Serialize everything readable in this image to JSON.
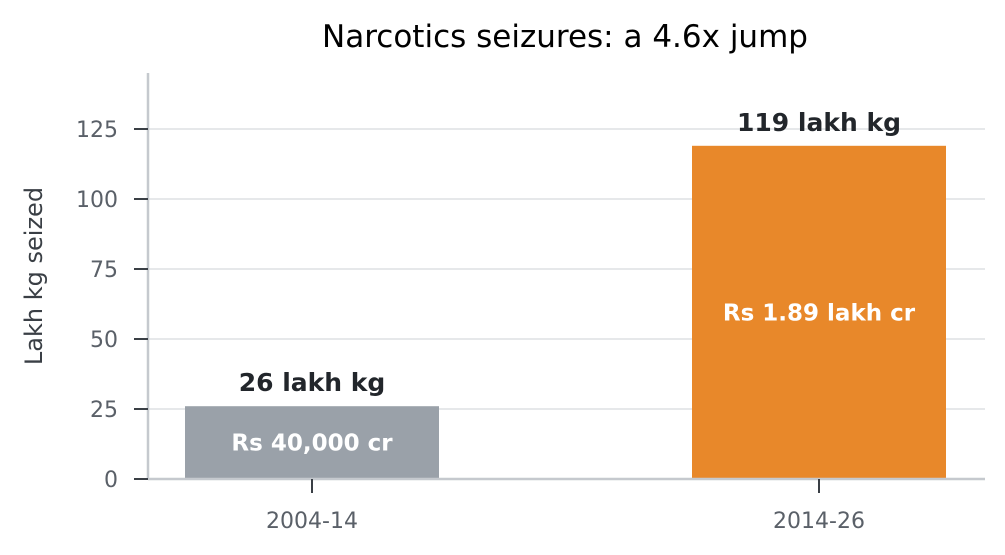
{
  "chart_data": {
    "type": "bar",
    "title": "Narcotics seizures: a 4.6x jump",
    "xlabel": "",
    "ylabel": "Lakh kg seized",
    "ylim": [
      0,
      145
    ],
    "yticks": [
      0,
      25,
      50,
      75,
      100,
      125
    ],
    "grid": "horizontal",
    "categories": [
      "2004-14",
      "2014-26"
    ],
    "values": [
      26,
      119
    ],
    "top_labels": [
      "26 lakh kg",
      "119 lakh kg"
    ],
    "inner_labels": [
      "Rs 40,000 cr",
      "Rs 1.89 lakh cr"
    ],
    "colors": [
      "#9aa1a9",
      "#e8882a"
    ],
    "grid_color": "#e6e8ea",
    "axis_color": "#c5c9ce"
  }
}
